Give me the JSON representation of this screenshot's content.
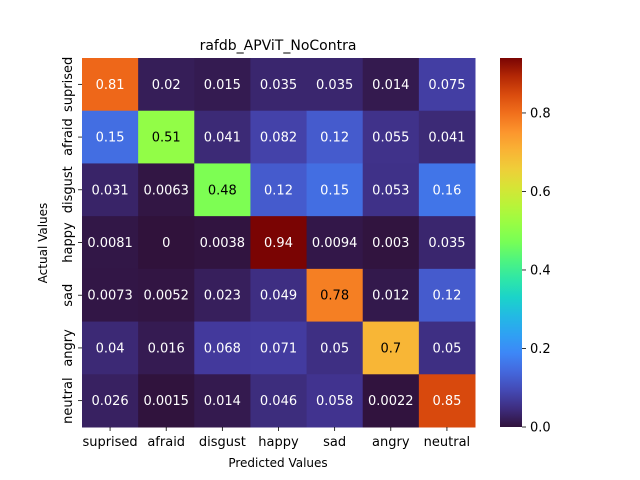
{
  "chart_data": {
    "type": "heatmap",
    "title": "rafdb_APViT_NoContra",
    "xlabel": "Predicted Values",
    "ylabel": "Actual Values",
    "x_categories": [
      "suprised",
      "afraid",
      "disgust",
      "happy",
      "sad",
      "angry",
      "neutral"
    ],
    "y_categories": [
      "suprised",
      "afraid",
      "disgust",
      "happy",
      "sad",
      "angry",
      "neutral"
    ],
    "values": [
      [
        0.81,
        0.02,
        0.015,
        0.035,
        0.035,
        0.014,
        0.075
      ],
      [
        0.15,
        0.51,
        0.041,
        0.082,
        0.12,
        0.055,
        0.041
      ],
      [
        0.031,
        0.0063,
        0.48,
        0.12,
        0.15,
        0.053,
        0.16
      ],
      [
        0.0081,
        0,
        0.0038,
        0.94,
        0.0094,
        0.003,
        0.035
      ],
      [
        0.0073,
        0.0052,
        0.023,
        0.049,
        0.78,
        0.012,
        0.12
      ],
      [
        0.04,
        0.016,
        0.068,
        0.071,
        0.05,
        0.7,
        0.05
      ],
      [
        0.026,
        0.0015,
        0.014,
        0.046,
        0.058,
        0.0022,
        0.85
      ]
    ],
    "value_labels": [
      [
        "0.81",
        "0.02",
        "0.015",
        "0.035",
        "0.035",
        "0.014",
        "0.075"
      ],
      [
        "0.15",
        "0.51",
        "0.041",
        "0.082",
        "0.12",
        "0.055",
        "0.041"
      ],
      [
        "0.031",
        "0.0063",
        "0.48",
        "0.12",
        "0.15",
        "0.053",
        "0.16"
      ],
      [
        "0.0081",
        "0",
        "0.0038",
        "0.94",
        "0.0094",
        "0.003",
        "0.035"
      ],
      [
        "0.0073",
        "0.0052",
        "0.023",
        "0.049",
        "0.78",
        "0.012",
        "0.12"
      ],
      [
        "0.04",
        "0.016",
        "0.068",
        "0.071",
        "0.05",
        "0.7",
        "0.05"
      ],
      [
        "0.026",
        "0.0015",
        "0.014",
        "0.046",
        "0.058",
        "0.0022",
        "0.85"
      ]
    ],
    "colorbar": {
      "range": [
        0,
        0.94
      ],
      "ticks": [
        0.0,
        0.2,
        0.4,
        0.6,
        0.8
      ],
      "tick_labels": [
        "0.0",
        "0.2",
        "0.4",
        "0.6",
        "0.8"
      ],
      "colormap": "turbo"
    },
    "grid": false,
    "legend": "colorbar-right"
  }
}
